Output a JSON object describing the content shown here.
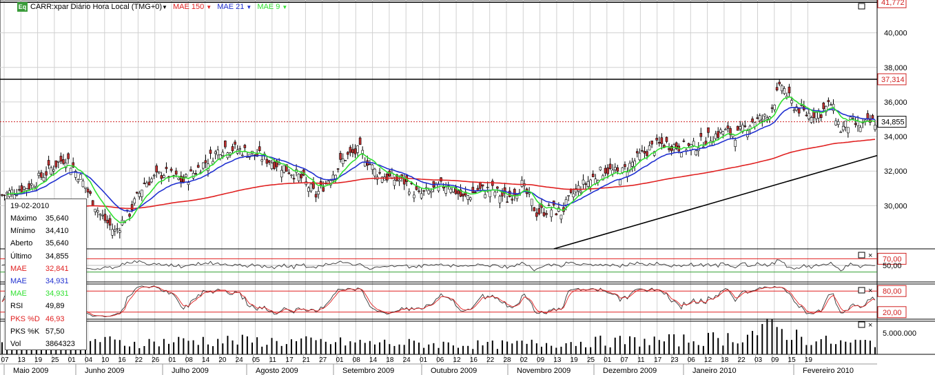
{
  "header": {
    "symbol_label": "CARR:xpar Diário Hora Local (TMG+0)",
    "indicators": [
      {
        "label": "MAE 150",
        "color": "#e02020"
      },
      {
        "label": "MAE 21",
        "color": "#2030d0"
      },
      {
        "label": "MAE 9",
        "color": "#30e030"
      }
    ],
    "eq_badge": "Eq"
  },
  "info_panel": {
    "date": "19-02-2010",
    "rows": [
      {
        "label": "Máximo",
        "value": "35,640",
        "color": "#000000"
      },
      {
        "label": "Mínimo",
        "value": "34,410",
        "color": "#000000"
      },
      {
        "label": "Aberto",
        "value": "35,640",
        "color": "#000000"
      },
      {
        "label": "Último",
        "value": "34,855",
        "color": "#000000"
      },
      {
        "label": "MAE",
        "value": "32,841",
        "color": "#e02020"
      },
      {
        "label": "MAE",
        "value": "34,931",
        "color": "#2030d0"
      },
      {
        "label": "MAE",
        "value": "34,931",
        "color": "#30e030"
      },
      {
        "label": "RSI",
        "value": "49,89",
        "color": "#000000"
      },
      {
        "label": "PKS %D",
        "value": "46,93",
        "color": "#e02020"
      },
      {
        "label": "PKS %K",
        "value": "57,50",
        "color": "#000000"
      },
      {
        "label": "Vol",
        "value": "3864323",
        "color": "#000000"
      }
    ]
  },
  "chart_data": {
    "type": "candlestick",
    "price_axis": {
      "range": [
        27.5,
        41.9
      ],
      "ticks": [
        "30,000",
        "32,000",
        "34,000",
        "36,000",
        "38,000",
        "40,000"
      ],
      "tick_values": [
        30,
        32,
        34,
        36,
        38,
        40
      ],
      "highlight_labels": [
        {
          "text": "41,772",
          "value": 41.772
        },
        {
          "text": "37,314",
          "value": 37.314
        },
        {
          "text": "34,855",
          "value": 34.855
        }
      ]
    },
    "horizontal_lines": [
      41.772,
      37.314
    ],
    "last_price_line": 34.855,
    "rsi": {
      "range": [
        0,
        100
      ],
      "levels": [
        70,
        50,
        30
      ],
      "labels": [
        "70,00",
        "50,00"
      ]
    },
    "stochastic": {
      "range": [
        0,
        100
      ],
      "levels": [
        80,
        20
      ],
      "labels": [
        "80,00",
        "20,00"
      ]
    },
    "volume": {
      "label": "5.000.000",
      "label_value": 5000000
    },
    "date_ticks": [
      "07",
      "13",
      "19",
      "25",
      "01",
      "04",
      "10",
      "16",
      "22",
      "26",
      "01",
      "08",
      "14",
      "20",
      "24",
      "05",
      "11",
      "17",
      "21",
      "27",
      "01",
      "08",
      "14",
      "18",
      "24",
      "01",
      "06",
      "12",
      "16",
      "22",
      "28",
      "02",
      "09",
      "13",
      "19",
      "25",
      "01",
      "07",
      "11",
      "17",
      "23",
      "06",
      "12",
      "18",
      "22",
      "03",
      "09",
      "15",
      "19"
    ],
    "months": [
      "Maio 2009",
      "Junho 2009",
      "Julho 2009",
      "Agosto 2009",
      "Setembro 2009",
      "Outubro 2009",
      "Novembro 2009",
      "Dezembro 2009",
      "Janeiro 2010",
      "Fevereiro 2010"
    ],
    "close_anchors": [
      [
        0,
        30.6
      ],
      [
        12,
        31.2
      ],
      [
        22,
        32.4
      ],
      [
        26,
        32.8
      ],
      [
        32,
        31.6
      ],
      [
        40,
        29.5
      ],
      [
        46,
        28.5
      ],
      [
        52,
        29.6
      ],
      [
        58,
        31.3
      ],
      [
        66,
        31.9
      ],
      [
        74,
        31.4
      ],
      [
        82,
        32.4
      ],
      [
        90,
        33.4
      ],
      [
        98,
        33.2
      ],
      [
        106,
        32.8
      ],
      [
        114,
        32.3
      ],
      [
        122,
        31.6
      ],
      [
        128,
        30.6
      ],
      [
        134,
        31.7
      ],
      [
        140,
        32.8
      ],
      [
        146,
        33.2
      ],
      [
        152,
        32.0
      ],
      [
        158,
        31.6
      ],
      [
        164,
        31.4
      ],
      [
        170,
        30.6
      ],
      [
        176,
        30.9
      ],
      [
        182,
        31.3
      ],
      [
        188,
        30.4
      ],
      [
        194,
        30.9
      ],
      [
        200,
        30.9
      ],
      [
        206,
        30.4
      ],
      [
        212,
        31.2
      ],
      [
        218,
        29.6
      ],
      [
        224,
        29.8
      ],
      [
        228,
        29.6
      ],
      [
        234,
        30.9
      ],
      [
        240,
        31.5
      ],
      [
        246,
        32.1
      ],
      [
        252,
        31.8
      ],
      [
        258,
        32.6
      ],
      [
        264,
        33.3
      ],
      [
        270,
        33.6
      ],
      [
        276,
        33.4
      ],
      [
        282,
        33.4
      ],
      [
        288,
        33.9
      ],
      [
        294,
        34.3
      ],
      [
        300,
        34.1
      ],
      [
        306,
        34.9
      ],
      [
        312,
        35.1
      ],
      [
        316,
        36.4
      ],
      [
        318,
        37.0
      ],
      [
        322,
        35.9
      ],
      [
        328,
        35.3
      ],
      [
        334,
        35.4
      ],
      [
        338,
        35.9
      ],
      [
        342,
        34.4
      ],
      [
        346,
        34.8
      ],
      [
        350,
        34.6
      ],
      [
        354,
        34.8
      ],
      [
        356,
        34.9
      ]
    ],
    "volume_anchors": [
      [
        0,
        0.3
      ],
      [
        30,
        0.55
      ],
      [
        50,
        0.35
      ],
      [
        80,
        0.45
      ],
      [
        120,
        0.4
      ],
      [
        160,
        0.35
      ],
      [
        200,
        0.3
      ],
      [
        240,
        0.4
      ],
      [
        280,
        0.45
      ],
      [
        300,
        0.55
      ],
      [
        315,
        0.85
      ],
      [
        330,
        0.45
      ],
      [
        345,
        0.35
      ],
      [
        356,
        0.4
      ]
    ],
    "series": [
      {
        "name": "MAE 150",
        "color": "#e02020"
      },
      {
        "name": "MAE 21",
        "color": "#2030d0"
      },
      {
        "name": "MAE 9",
        "color": "#30e030"
      }
    ]
  }
}
